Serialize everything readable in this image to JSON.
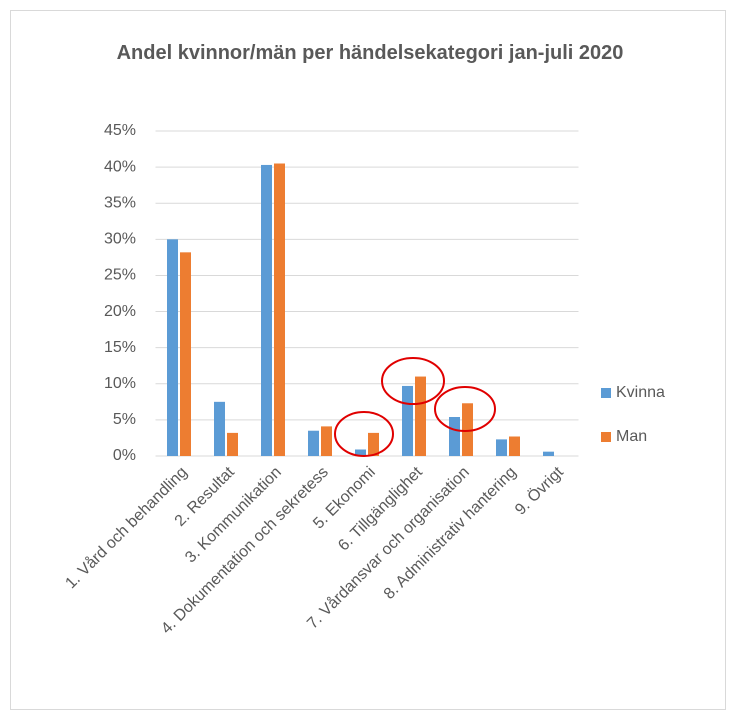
{
  "chart_data": {
    "type": "bar",
    "title": "Andel kvinnor/män per händelsekategori jan-juli 2020",
    "categories": [
      "1. Vård och behandling",
      "2. Resultat",
      "3. Kommunikation",
      "4. Dokumentation och sekretess",
      "5. Ekonomi",
      "6. Tillgänglighet",
      "7. Vårdansvar och organisation",
      "8. Administrativ hantering",
      "9. Övrigt"
    ],
    "series": [
      {
        "name": "Kvinna",
        "color": "#5b9bd5",
        "values": [
          30,
          7.5,
          40.3,
          3.5,
          0.9,
          9.7,
          5.4,
          2.3,
          0.6
        ]
      },
      {
        "name": "Man",
        "color": "#ed7d31",
        "values": [
          28.2,
          3.2,
          40.5,
          4.1,
          3.2,
          11,
          7.3,
          2.7,
          0
        ]
      }
    ],
    "ylim": [
      0,
      45
    ],
    "yticks": [
      {
        "value": 0,
        "label": "0%"
      },
      {
        "value": 5,
        "label": "5%"
      },
      {
        "value": 10,
        "label": "10%"
      },
      {
        "value": 15,
        "label": "15%"
      },
      {
        "value": 20,
        "label": "20%"
      },
      {
        "value": 25,
        "label": "25%"
      },
      {
        "value": 30,
        "label": "30%"
      },
      {
        "value": 35,
        "label": "35%"
      },
      {
        "value": 40,
        "label": "40%"
      },
      {
        "value": 45,
        "label": "45%"
      }
    ],
    "grid": true,
    "legend": "right"
  }
}
